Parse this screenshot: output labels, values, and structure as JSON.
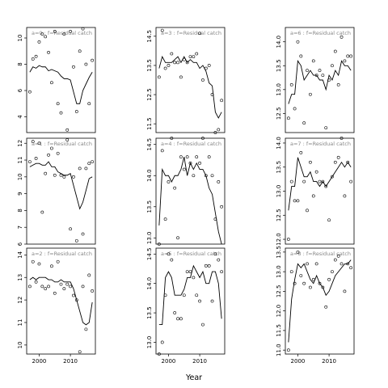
{
  "chart_data": {
    "type": "line",
    "xlabel": "Year",
    "ylabel": "",
    "xticks": [
      2000,
      2010
    ],
    "xlim": [
      1996,
      2018
    ],
    "points_style": "open circles",
    "line_style": "black line",
    "panels": [
      {
        "title": "a=0 : f=Residual catch",
        "ylim": [
          2.8,
          10.8
        ],
        "yticks": [
          4,
          6,
          8,
          10
        ],
        "points": {
          "x": [
            1997,
            1998,
            1999,
            2000,
            2001,
            2002,
            2003,
            2004,
            2005,
            2006,
            2007,
            2008,
            2009,
            2010,
            2011,
            2012,
            2013,
            2014,
            2015,
            2016,
            2017
          ],
          "y": [
            5.9,
            8.4,
            8.6,
            9.7,
            10.3,
            10.1,
            8.9,
            6.6,
            10.5,
            5.0,
            4.3,
            10.3,
            3.0,
            10.5,
            7.8,
            4.4,
            9.0,
            10.7,
            8.0,
            5.0,
            8.3
          ]
        },
        "line": {
          "x": [
            1997,
            1998,
            1999,
            2000,
            2001,
            2002,
            2003,
            2004,
            2005,
            2006,
            2007,
            2008,
            2009,
            2010,
            2011,
            2012,
            2013,
            2014,
            2015,
            2016,
            2017
          ],
          "y": [
            7.4,
            7.8,
            7.7,
            7.9,
            7.8,
            7.8,
            7.5,
            7.6,
            7.5,
            7.4,
            7.1,
            6.9,
            6.9,
            6.8,
            5.9,
            5.0,
            5.0,
            6.0,
            6.5,
            7.0,
            7.4
          ]
        }
      },
      {
        "title": "a=3 : f=Residual catch",
        "ylim": [
          11.2,
          14.8
        ],
        "yticks": [
          11.5,
          12.5,
          13.5,
          14.5
        ],
        "points": {
          "x": [
            1997,
            1998,
            1999,
            2000,
            2001,
            2002,
            2003,
            2004,
            2005,
            2006,
            2007,
            2008,
            2009,
            2010,
            2011,
            2012,
            2013,
            2014,
            2015,
            2016,
            2017
          ],
          "y": [
            13.1,
            14.7,
            13.4,
            13.5,
            13.9,
            13.6,
            13.6,
            13.1,
            13.7,
            13.6,
            13.8,
            13.8,
            13.9,
            14.6,
            13.0,
            13.4,
            13.5,
            12.5,
            11.2,
            11.3,
            12.3
          ]
        },
        "line": {
          "x": [
            1997,
            1998,
            1999,
            2000,
            2001,
            2002,
            2003,
            2004,
            2005,
            2006,
            2007,
            2008,
            2009,
            2010,
            2011,
            2012,
            2013,
            2014,
            2015,
            2016,
            2017
          ],
          "y": [
            13.4,
            13.8,
            13.6,
            13.6,
            13.6,
            13.7,
            13.8,
            13.6,
            13.8,
            13.6,
            13.7,
            13.6,
            13.6,
            13.4,
            13.5,
            13.3,
            12.9,
            12.8,
            11.9,
            11.7,
            11.9
          ]
        }
      },
      {
        "title": "a=6 : f=Residual catch",
        "ylim": [
          12.1,
          14.3
        ],
        "yticks": [
          12.5,
          13.0,
          13.5,
          14.0
        ],
        "points": {
          "x": [
            1997,
            1998,
            1999,
            2000,
            2001,
            2002,
            2003,
            2004,
            2005,
            2006,
            2007,
            2008,
            2009,
            2010,
            2011,
            2012,
            2013,
            2014,
            2015,
            2016,
            2017
          ],
          "y": [
            12.4,
            13.1,
            12.6,
            14.0,
            13.7,
            12.3,
            13.4,
            12.9,
            13.6,
            13.3,
            13.4,
            13.3,
            12.2,
            13.2,
            13.5,
            13.8,
            13.1,
            14.1,
            13.6,
            13.7,
            13.7
          ]
        },
        "line": {
          "x": [
            1997,
            1998,
            1999,
            2000,
            2001,
            2002,
            2003,
            2004,
            2005,
            2006,
            2007,
            2008,
            2009,
            2010,
            2011,
            2012,
            2013,
            2014,
            2015,
            2016,
            2017
          ],
          "y": [
            12.7,
            12.9,
            12.9,
            13.6,
            13.5,
            13.2,
            13.3,
            13.4,
            13.3,
            13.3,
            13.2,
            13.2,
            13.0,
            13.3,
            13.2,
            13.4,
            13.3,
            13.6,
            13.5,
            13.5,
            13.4
          ]
        }
      },
      {
        "title": "a=1 : f=Residual catch",
        "ylim": [
          6.0,
          12.3
        ],
        "yticks": [
          6,
          7,
          8,
          9,
          10,
          11,
          12
        ],
        "points": {
          "x": [
            1997,
            1998,
            1999,
            2000,
            2001,
            2002,
            2003,
            2004,
            2005,
            2006,
            2007,
            2008,
            2009,
            2010,
            2011,
            2012,
            2013,
            2014,
            2015,
            2016,
            2017
          ],
          "y": [
            10.9,
            12.1,
            11.1,
            12.0,
            7.9,
            10.2,
            11.3,
            11.7,
            10.1,
            11.4,
            10.1,
            10.0,
            12.2,
            6.9,
            10.0,
            6.2,
            10.5,
            6.6,
            10.5,
            10.8,
            10.9
          ]
        },
        "line": {
          "x": [
            1997,
            1998,
            1999,
            2000,
            2001,
            2002,
            2003,
            2004,
            2005,
            2006,
            2007,
            2008,
            2009,
            2010,
            2011,
            2012,
            2013,
            2014,
            2015,
            2016,
            2017
          ],
          "y": [
            10.6,
            10.7,
            10.8,
            10.8,
            10.7,
            10.7,
            10.9,
            10.6,
            10.6,
            10.3,
            10.2,
            10.1,
            10.1,
            10.2,
            9.5,
            8.8,
            8.1,
            8.5,
            9.2,
            9.9,
            10.0
          ]
        }
      },
      {
        "title": "a=4 : f=Residual catch",
        "ylim": [
          12.9,
          14.6
        ],
        "yticks": [
          13.0,
          13.5,
          14.0,
          14.5
        ],
        "points": {
          "x": [
            1997,
            1998,
            1999,
            2000,
            2001,
            2002,
            2003,
            2004,
            2005,
            2006,
            2007,
            2008,
            2009,
            2010,
            2011,
            2012,
            2013,
            2014,
            2015,
            2016,
            2017
          ],
          "y": [
            12.9,
            14.4,
            13.3,
            13.9,
            14.6,
            13.8,
            13.0,
            14.3,
            14.1,
            14.3,
            14.2,
            14.0,
            14.3,
            14.2,
            14.6,
            14.0,
            14.3,
            14.0,
            13.3,
            13.9,
            13.5
          ]
        },
        "line": {
          "x": [
            1997,
            1998,
            1999,
            2000,
            2001,
            2002,
            2003,
            2004,
            2005,
            2006,
            2007,
            2008,
            2009,
            2010,
            2011,
            2012,
            2013,
            2014,
            2015,
            2016,
            2017
          ],
          "y": [
            13.2,
            14.1,
            14.0,
            14.0,
            13.9,
            14.0,
            14.0,
            14.1,
            14.3,
            14.0,
            14.2,
            14.1,
            14.2,
            14.1,
            14.1,
            14.0,
            13.8,
            13.7,
            13.4,
            13.1,
            12.9
          ]
        }
      },
      {
        "title": "a=7 : f=Residual catch",
        "ylim": [
          11.9,
          14.1
        ],
        "yticks": [
          12.0,
          12.5,
          13.0,
          13.5,
          14.0
        ],
        "points": {
          "x": [
            1997,
            1998,
            1999,
            2000,
            2001,
            2002,
            2003,
            2004,
            2005,
            2006,
            2007,
            2008,
            2009,
            2010,
            2011,
            2012,
            2013,
            2014,
            2015,
            2016,
            2017
          ],
          "y": [
            12.0,
            13.2,
            12.8,
            12.8,
            13.8,
            13.2,
            12.6,
            13.6,
            12.9,
            13.4,
            13.2,
            13.2,
            13.1,
            12.4,
            13.3,
            13.6,
            13.7,
            14.1,
            12.9,
            13.6,
            13.2
          ]
        },
        "line": {
          "x": [
            1997,
            1998,
            1999,
            2000,
            2001,
            2002,
            2003,
            2004,
            2005,
            2006,
            2007,
            2008,
            2009,
            2010,
            2011,
            2012,
            2013,
            2014,
            2015,
            2016,
            2017
          ],
          "y": [
            12.6,
            13.1,
            13.1,
            13.7,
            13.5,
            13.3,
            13.3,
            13.4,
            13.2,
            13.2,
            13.1,
            13.2,
            13.1,
            13.2,
            13.3,
            13.4,
            13.5,
            13.6,
            13.5,
            13.6,
            13.5
          ]
        }
      },
      {
        "title": "a=2 : f=Residual catch",
        "ylim": [
          9.6,
          14.3
        ],
        "yticks": [
          10,
          11,
          12,
          13,
          14
        ],
        "points": {
          "x": [
            1997,
            1998,
            1999,
            2000,
            2001,
            2002,
            2003,
            2004,
            2005,
            2006,
            2007,
            2008,
            2009,
            2010,
            2011,
            2012,
            2013,
            2014,
            2015,
            2016,
            2017
          ],
          "y": [
            12.6,
            13.7,
            12.8,
            13.6,
            12.6,
            12.5,
            12.6,
            13.5,
            12.3,
            13.7,
            12.7,
            12.5,
            12.7,
            12.6,
            12.2,
            12.0,
            9.7,
            12.6,
            10.7,
            13.1,
            12.4
          ]
        },
        "line": {
          "x": [
            1997,
            1998,
            1999,
            2000,
            2001,
            2002,
            2003,
            2004,
            2005,
            2006,
            2007,
            2008,
            2009,
            2010,
            2011,
            2012,
            2013,
            2014,
            2015,
            2016,
            2017
          ],
          "y": [
            12.9,
            13.0,
            12.9,
            13.0,
            13.0,
            13.0,
            12.9,
            12.9,
            12.8,
            12.8,
            12.9,
            12.8,
            12.8,
            12.8,
            12.5,
            12.0,
            11.5,
            11.0,
            10.9,
            11.0,
            11.9
          ]
        }
      },
      {
        "title": "a=5 : f=Residual catch",
        "ylim": [
          12.8,
          14.6
        ],
        "yticks": [
          13.0,
          13.5,
          14.0,
          14.5
        ],
        "points": {
          "x": [
            1997,
            1998,
            1999,
            2000,
            2001,
            2002,
            2003,
            2004,
            2005,
            2006,
            2007,
            2008,
            2009,
            2010,
            2011,
            2012,
            2013,
            2014,
            2015,
            2016,
            2017
          ],
          "y": [
            12.8,
            13.0,
            13.8,
            14.5,
            14.4,
            13.5,
            13.4,
            13.4,
            13.8,
            14.2,
            14.2,
            14.1,
            13.8,
            13.7,
            13.3,
            14.3,
            14.3,
            13.7,
            14.5,
            14.4,
            14.2
          ]
        },
        "line": {
          "x": [
            1997,
            1998,
            1999,
            2000,
            2001,
            2002,
            2003,
            2004,
            2005,
            2006,
            2007,
            2008,
            2009,
            2010,
            2011,
            2012,
            2013,
            2014,
            2015,
            2016,
            2017
          ],
          "y": [
            13.3,
            13.3,
            14.1,
            14.2,
            14.1,
            13.8,
            13.8,
            13.8,
            13.9,
            14.1,
            14.1,
            14.3,
            14.2,
            14.1,
            14.2,
            14.0,
            14.0,
            14.2,
            14.2,
            14.0,
            13.4
          ]
        }
      },
      {
        "title": "a=8 : f=Residual catch",
        "ylim": [
          10.9,
          13.6
        ],
        "yticks": [
          11.0,
          11.5,
          12.0,
          12.5,
          13.0,
          13.5
        ],
        "points": {
          "x": [
            1997,
            1998,
            1999,
            2000,
            2001,
            2002,
            2003,
            2004,
            2005,
            2006,
            2007,
            2008,
            2009,
            2010,
            2011,
            2012,
            2013,
            2014,
            2015,
            2016,
            2017
          ],
          "y": [
            11.0,
            13.0,
            12.7,
            13.5,
            12.9,
            12.7,
            13.2,
            12.6,
            12.8,
            13.2,
            12.7,
            12.6,
            12.1,
            12.8,
            13.0,
            13.3,
            13.4,
            13.2,
            12.5,
            13.2,
            13.1
          ]
        },
        "line": {
          "x": [
            1997,
            1998,
            1999,
            2000,
            2001,
            2002,
            2003,
            2004,
            2005,
            2006,
            2007,
            2008,
            2009,
            2010,
            2011,
            2012,
            2013,
            2014,
            2015,
            2016,
            2017
          ],
          "y": [
            11.2,
            12.3,
            12.8,
            13.2,
            13.1,
            13.2,
            13.0,
            12.8,
            12.7,
            12.9,
            12.7,
            12.6,
            12.4,
            12.5,
            12.7,
            12.9,
            13.0,
            13.1,
            13.2,
            13.2,
            13.3
          ]
        }
      }
    ]
  }
}
